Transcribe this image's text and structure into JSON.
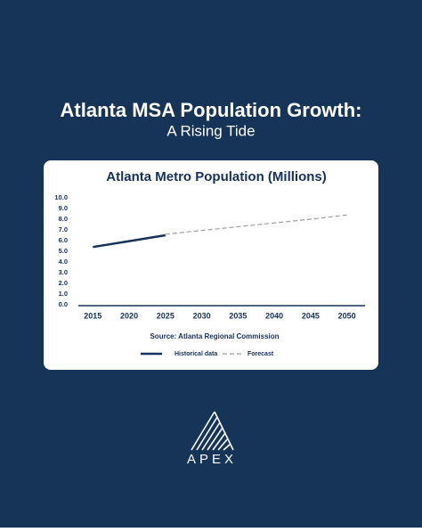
{
  "header": {
    "title": "Atlanta MSA Population Growth:",
    "subtitle": "A Rising Tide"
  },
  "chart_data": {
    "type": "line",
    "title": "Atlanta Metro Population (Millions)",
    "x": [
      2015,
      2020,
      2025,
      2030,
      2035,
      2040,
      2045,
      2050
    ],
    "xlim": [
      2013,
      2052.5
    ],
    "xticks": [
      2015,
      2020,
      2025,
      2030,
      2035,
      2040,
      2045,
      2050
    ],
    "ylim": [
      0,
      10
    ],
    "yticks": [
      {
        "value": 0,
        "label": "0.0"
      },
      {
        "value": 1,
        "label": "1.0"
      },
      {
        "value": 2,
        "label": "2.0"
      },
      {
        "value": 3,
        "label": "3.0"
      },
      {
        "value": 4,
        "label": "4.0"
      },
      {
        "value": 5,
        "label": "5.0"
      },
      {
        "value": 6,
        "label": "6.0"
      },
      {
        "value": 7,
        "label": "7.0"
      },
      {
        "value": 8,
        "label": "8.0"
      },
      {
        "value": 9,
        "label": "9.0"
      },
      {
        "value": 10,
        "label": "10.0"
      }
    ],
    "series": [
      {
        "name": "Historical data",
        "color": "#16315a",
        "dashed": false,
        "values": [
          5.4,
          5.95,
          6.5,
          null,
          null,
          null,
          null,
          null
        ]
      },
      {
        "name": "Forecast",
        "color": "#a0a0a0",
        "dashed": true,
        "values": [
          null,
          null,
          6.6,
          6.95,
          7.3,
          7.65,
          8.0,
          8.4
        ]
      }
    ],
    "source": "Source: Atlanta Regional Commission"
  },
  "logo": "APEX"
}
